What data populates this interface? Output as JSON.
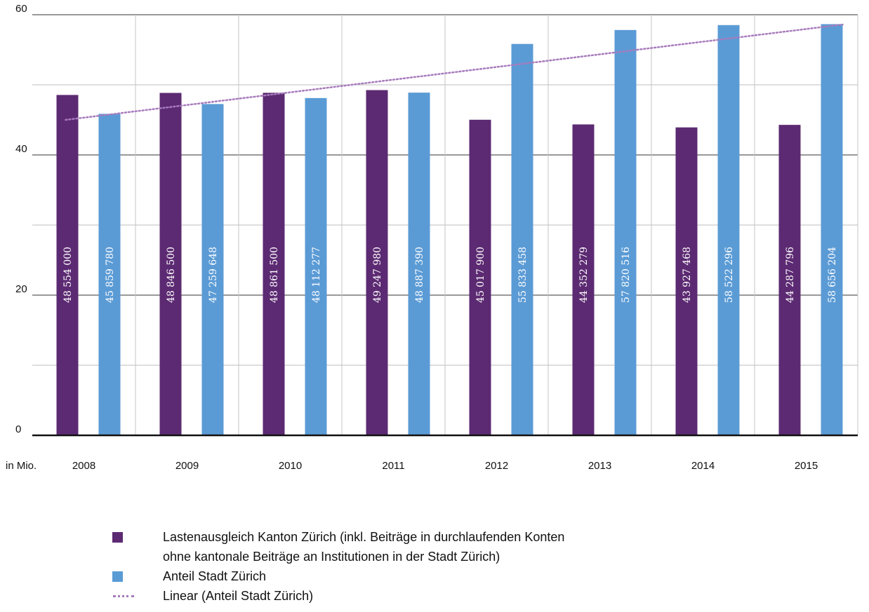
{
  "chart_data": {
    "type": "bar",
    "unit_label": "in Mio.",
    "categories": [
      "2008",
      "2009",
      "2010",
      "2011",
      "2012",
      "2013",
      "2014",
      "2015"
    ],
    "ylim": [
      0,
      60
    ],
    "yticks": [
      0,
      20,
      40,
      60
    ],
    "grid": true,
    "legend_position": "bottom",
    "series": [
      {
        "name": "Lastenausgleich Kanton Zürich (inkl. Beiträge in durchlaufenden Konten\nohne kantonale Beiträge an Institutionen in der Stadt Zürich)",
        "color": "#5c2a72",
        "values": [
          48.554,
          48.8465,
          48.8615,
          49.24798,
          45.0179,
          44.352279,
          43.927468,
          44.287796
        ],
        "labels": [
          "48 554 000",
          "48 846 500",
          "48 861 500",
          "49 247 980",
          "45 017 900",
          "44 352 279",
          "43 927 468",
          "44 287 796"
        ]
      },
      {
        "name": "Anteil Stadt Zürich",
        "color": "#5b9bd5",
        "values": [
          45.85978,
          47.259648,
          48.112277,
          48.88739,
          55.833458,
          57.820516,
          58.522296,
          58.656204
        ],
        "labels": [
          "45 859 780",
          "47 259 648",
          "48 112 277",
          "48 887 390",
          "55 833 458",
          "57 820 516",
          "58 522 296",
          "58 656 204"
        ]
      }
    ],
    "trendline": {
      "name": "Linear (Anteil Stadt Zürich)",
      "color": "#a77bbd",
      "start": 45.0,
      "end": 58.6
    }
  }
}
